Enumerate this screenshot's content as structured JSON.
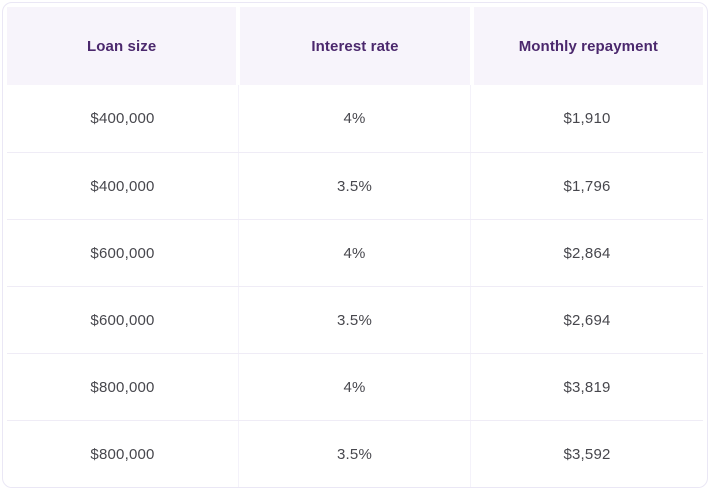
{
  "table": {
    "columns": [
      "Loan size",
      "Interest rate",
      "Monthly repayment"
    ],
    "rows": [
      [
        "$400,000",
        "4%",
        "$1,910"
      ],
      [
        "$400,000",
        "3.5%",
        "$1,796"
      ],
      [
        "$600,000",
        "4%",
        "$2,864"
      ],
      [
        "$600,000",
        "3.5%",
        "$2,694"
      ],
      [
        "$800,000",
        "4%",
        "$3,819"
      ],
      [
        "$800,000",
        "3.5%",
        "$3,592"
      ]
    ]
  },
  "colors": {
    "header_bg": "#f7f4fb",
    "header_text": "#4b286d",
    "cell_text": "#47474d",
    "row_divider": "#efecf6",
    "column_divider": "#f4f2fa",
    "outer_border": "#eae7f5",
    "background": "#ffffff"
  }
}
